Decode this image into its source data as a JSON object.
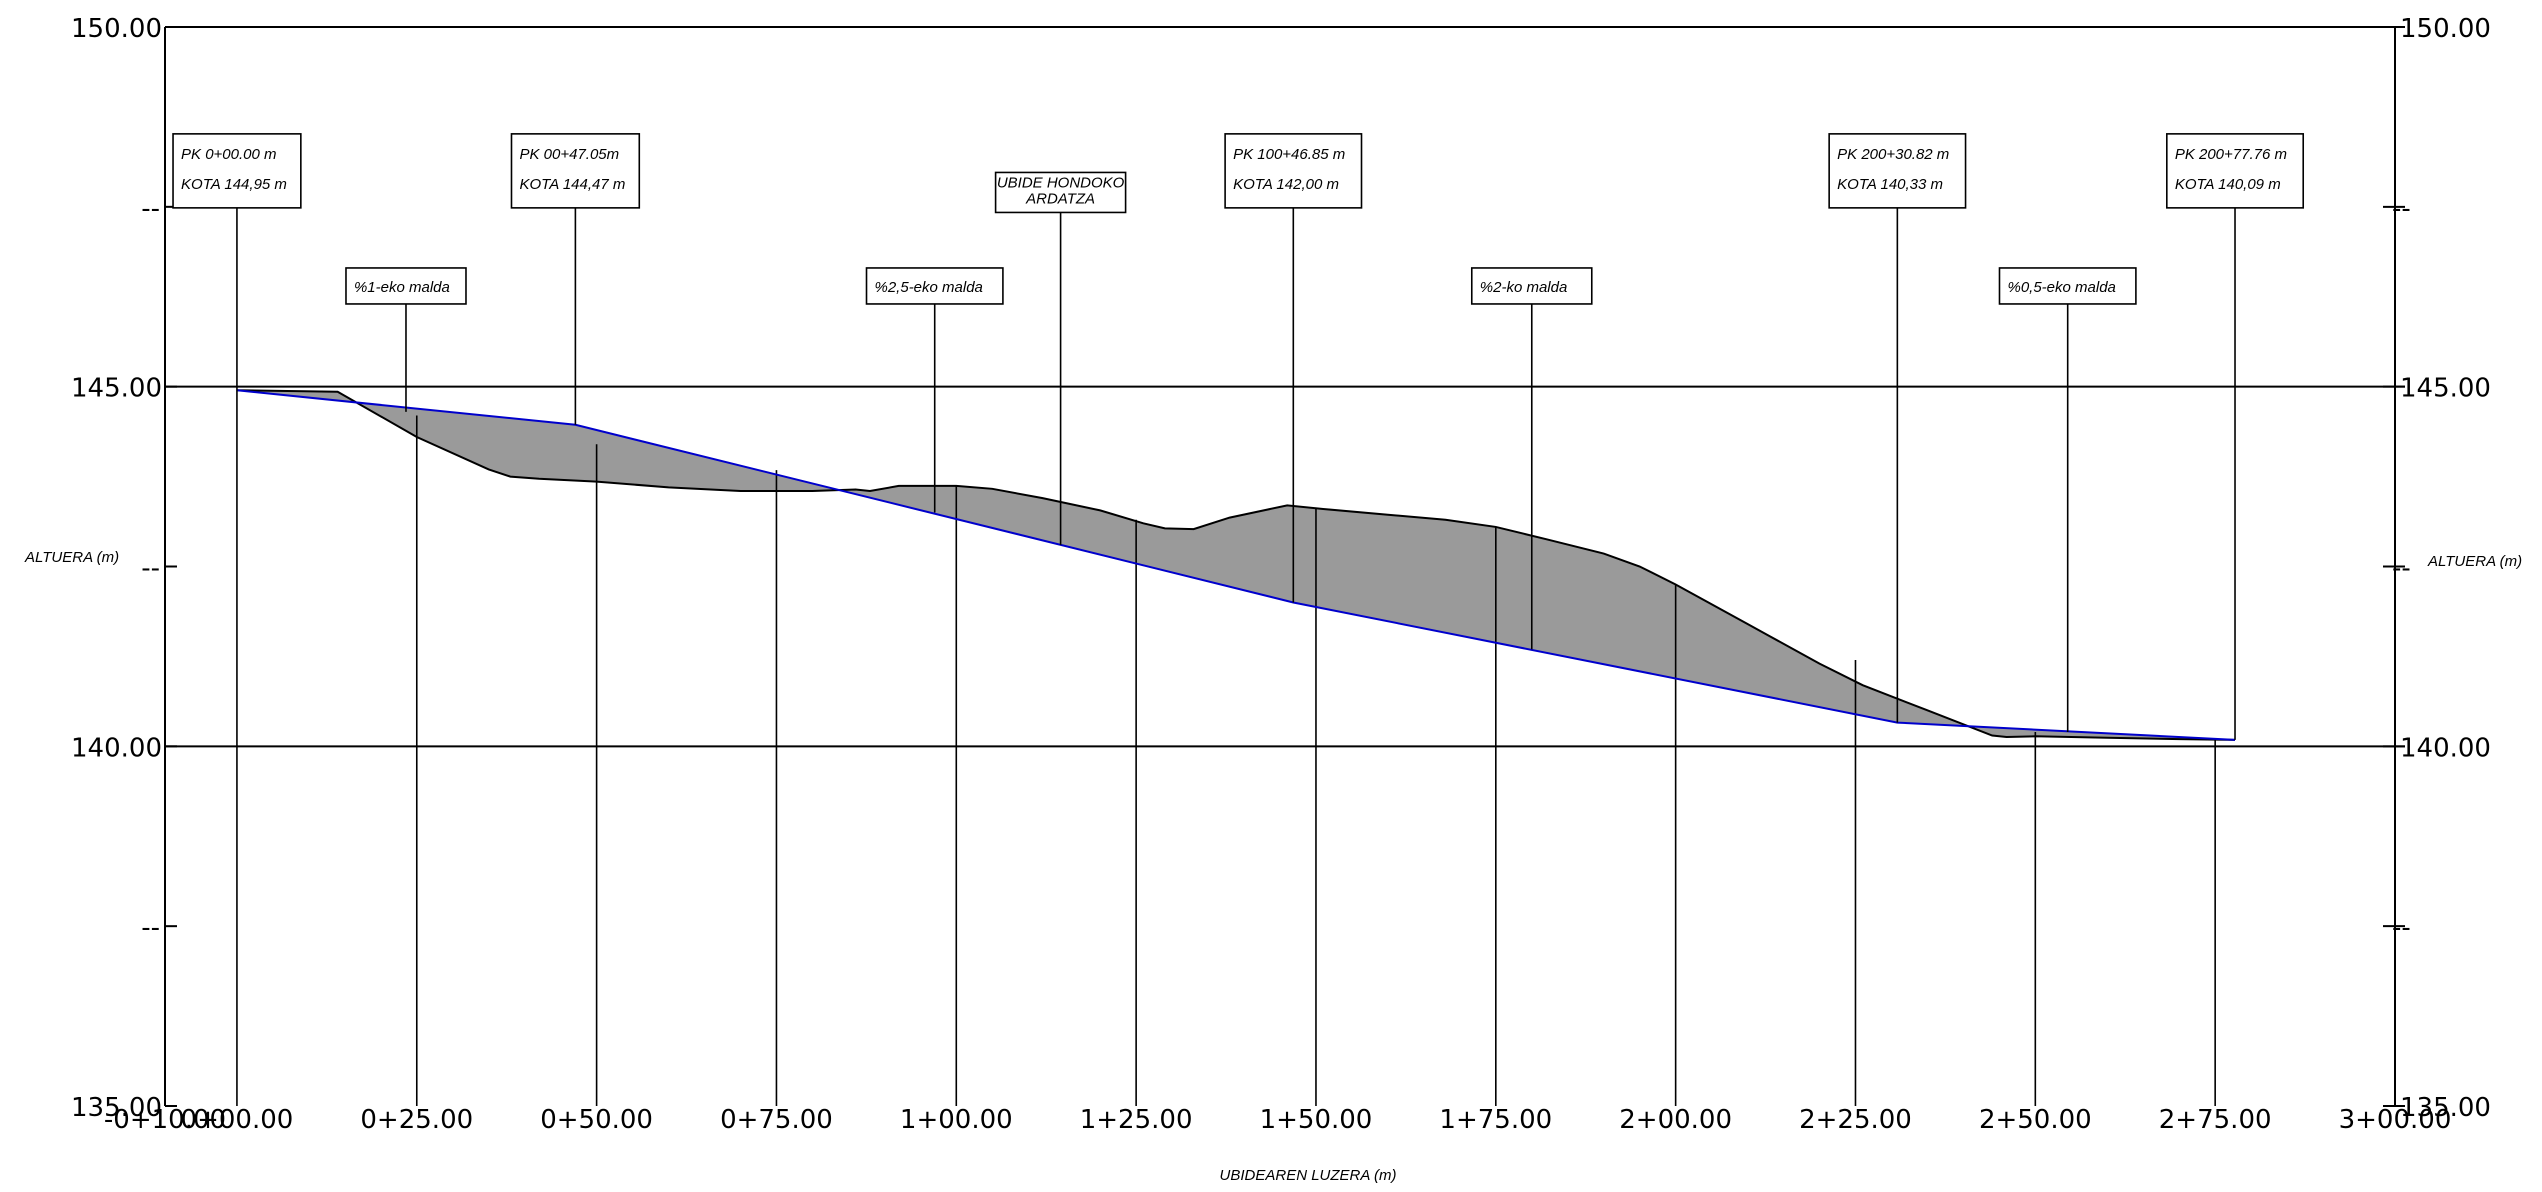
{
  "chart_data": {
    "type": "area",
    "title": "",
    "xlabel": "UBIDEAREN LUZERA (m)",
    "ylabel_left": "ALTUERA (m)",
    "ylabel_right": "ALTUERA (m)",
    "xlim": [
      -10,
      300
    ],
    "ylim": [
      135,
      150
    ],
    "y_ticks": [
      {
        "value": 150,
        "label": "150.00"
      },
      {
        "value": 147.5,
        "label": "--"
      },
      {
        "value": 145,
        "label": "145.00"
      },
      {
        "value": 142.5,
        "label": "--"
      },
      {
        "value": 140,
        "label": "140.00"
      },
      {
        "value": 137.5,
        "label": "--"
      },
      {
        "value": 135,
        "label": "135.00"
      }
    ],
    "x_ticks": [
      {
        "value": -10,
        "label": "-0+10.00"
      },
      {
        "value": 0,
        "label": "0+00.00"
      },
      {
        "value": 25,
        "label": "0+25.00"
      },
      {
        "value": 50,
        "label": "0+50.00"
      },
      {
        "value": 75,
        "label": "0+75.00"
      },
      {
        "value": 100,
        "label": "1+00.00"
      },
      {
        "value": 125,
        "label": "1+25.00"
      },
      {
        "value": 150,
        "label": "1+50.00"
      },
      {
        "value": 175,
        "label": "1+75.00"
      },
      {
        "value": 200,
        "label": "2+00.00"
      },
      {
        "value": 225,
        "label": "2+25.00"
      },
      {
        "value": 250,
        "label": "2+50.00"
      },
      {
        "value": 275,
        "label": "2+75.00"
      },
      {
        "value": 300,
        "label": "3+00.00"
      }
    ],
    "gridlines_y": [
      145,
      140
    ],
    "series": [
      {
        "color": "#000000",
        "x": [
          0,
          14,
          25,
          35,
          38,
          42,
          50,
          60,
          70,
          80,
          86,
          88,
          92,
          100,
          105,
          112,
          120,
          126,
          129,
          133,
          138,
          146,
          151,
          160,
          168,
          175,
          182,
          190,
          195,
          200,
          210,
          220,
          226,
          235,
          244,
          246,
          250,
          260,
          270,
          277.76
        ],
        "y": [
          144.95,
          144.93,
          144.3,
          143.85,
          143.75,
          143.72,
          143.68,
          143.6,
          143.55,
          143.55,
          143.57,
          143.55,
          143.62,
          143.62,
          143.58,
          143.45,
          143.28,
          143.1,
          143.03,
          143.02,
          143.18,
          143.35,
          143.3,
          143.22,
          143.15,
          143.05,
          142.88,
          142.68,
          142.5,
          142.25,
          141.7,
          141.15,
          140.85,
          140.5,
          140.15,
          140.13,
          140.14,
          140.12,
          140.1,
          140.09
        ]
      },
      {
        "color": "#0000cc",
        "x": [
          0,
          47.05,
          146.85,
          230.82,
          277.76
        ],
        "y": [
          144.95,
          144.47,
          142.0,
          140.33,
          140.09
        ]
      }
    ],
    "verticals": [
      {
        "x": 25,
        "y_top": 144.6
      },
      {
        "x": 50,
        "y_top": 144.2
      },
      {
        "x": 75,
        "y_top": 143.84
      },
      {
        "x": 100,
        "y_top": 143.62
      },
      {
        "x": 125,
        "y_top": 143.15
      },
      {
        "x": 150,
        "y_top": 143.32
      },
      {
        "x": 175,
        "y_top": 143.05
      },
      {
        "x": 200,
        "y_top": 142.25
      },
      {
        "x": 225,
        "y_top": 141.2
      },
      {
        "x": 250,
        "y_top": 140.2
      },
      {
        "x": 275,
        "y_top": 140.1
      }
    ],
    "annotations": [
      {
        "lines": [
          "PK 0+00.00 m",
          "KOTA 144,95 m"
        ],
        "x": 0,
        "box_y": 148.0,
        "stem_bottom": 135
      },
      {
        "lines": [
          "PK 00+47.05m",
          "KOTA 144,47 m"
        ],
        "x": 47.05,
        "box_y": 148.0,
        "stem_bottom": 144.47
      },
      {
        "lines": [
          "UBIDE HONDOKO",
          "ARDATZA"
        ],
        "x": 114.5,
        "box_y": 147.7,
        "stem_bottom": 142.8
      },
      {
        "lines": [
          "PK 100+46.85 m",
          "KOTA 142,00 m"
        ],
        "x": 146.85,
        "box_y": 148.0,
        "stem_bottom": 142.0
      },
      {
        "lines": [
          "PK 200+30.82 m",
          "KOTA 140,33 m"
        ],
        "x": 230.82,
        "box_y": 148.0,
        "stem_bottom": 140.33
      },
      {
        "lines": [
          "PK 200+77.76 m",
          "KOTA 140,09 m"
        ],
        "x": 277.76,
        "box_y": 148.0,
        "stem_bottom": 140.09
      },
      {
        "lines": [
          "%1-eko malda"
        ],
        "x": 23.5,
        "box_y": 146.4,
        "stem_bottom": 144.65
      },
      {
        "lines": [
          "%2,5-eko malda"
        ],
        "x": 97,
        "box_y": 146.4,
        "stem_bottom": 143.25
      },
      {
        "lines": [
          "%2-ko malda"
        ],
        "x": 180,
        "box_y": 146.4,
        "stem_bottom": 141.35
      },
      {
        "lines": [
          "%0,5-eko malda"
        ],
        "x": 254.5,
        "box_y": 146.4,
        "stem_bottom": 140.2
      }
    ]
  }
}
